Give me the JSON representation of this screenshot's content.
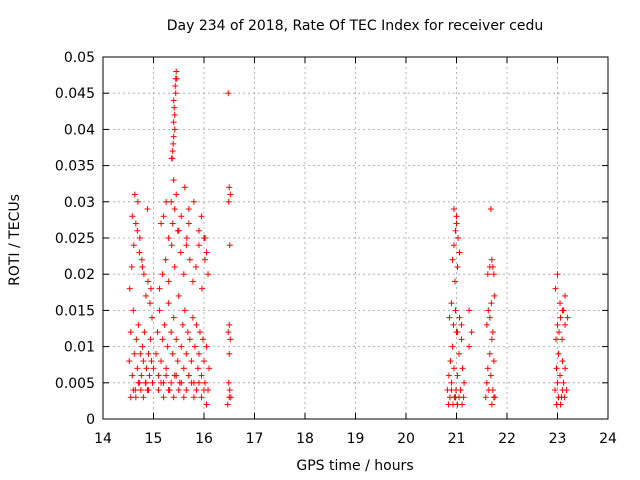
{
  "chart_data": {
    "type": "scatter",
    "title": "Day 234 of 2018, Rate Of TEC Index for receiver cedu",
    "xlabel": "GPS time / hours",
    "ylabel": "ROTI / TECUs",
    "xlim": [
      14,
      24
    ],
    "ylim": [
      0,
      0.05
    ],
    "grid": true,
    "marker": "+",
    "marker_color": "#ff0000",
    "x_ticks": [
      "14",
      "15",
      "16",
      "17",
      "18",
      "19",
      "20",
      "21",
      "22",
      "23",
      "24"
    ],
    "y_ticks": [
      "0",
      "0.005",
      "0.01",
      "0.015",
      "0.02",
      "0.025",
      "0.03",
      "0.035",
      "0.04",
      "0.045",
      "0.05"
    ],
    "series": [
      {
        "name": "ROTI",
        "x": [
          14.52,
          14.55,
          14.58,
          14.6,
          14.62,
          14.64,
          14.66,
          14.68,
          14.7,
          14.72,
          14.74,
          14.76,
          14.78,
          14.8,
          14.82,
          14.84,
          14.86,
          14.88,
          14.9,
          14.92,
          14.94,
          14.96,
          14.98,
          15.0,
          14.53,
          14.57,
          14.61,
          14.65,
          14.69,
          14.73,
          14.77,
          14.81,
          14.85,
          14.89,
          14.93,
          14.97,
          14.55,
          14.6,
          14.65,
          14.7,
          14.75,
          14.8,
          14.85,
          14.9,
          14.58,
          14.63,
          14.68,
          14.72,
          14.78,
          14.88,
          14.95,
          15.05,
          15.08,
          15.1,
          15.12,
          15.15,
          15.18,
          15.2,
          15.22,
          15.25,
          15.28,
          15.3,
          15.32,
          15.35,
          15.38,
          15.4,
          15.42,
          15.45,
          15.48,
          15.5,
          15.52,
          15.55,
          15.58,
          15.6,
          15.62,
          15.65,
          15.68,
          15.7,
          15.72,
          15.75,
          15.78,
          15.8,
          15.82,
          15.85,
          15.88,
          15.9,
          15.92,
          15.95,
          15.98,
          16.0,
          16.02,
          16.05,
          16.08,
          16.1,
          15.1,
          15.15,
          15.2,
          15.25,
          15.3,
          15.35,
          15.4,
          15.45,
          15.5,
          15.55,
          15.6,
          15.65,
          15.7,
          15.75,
          15.8,
          15.85,
          15.9,
          15.95,
          16.0,
          16.05,
          15.12,
          15.18,
          15.24,
          15.3,
          15.36,
          15.42,
          15.48,
          15.54,
          15.6,
          15.66,
          15.72,
          15.78,
          15.84,
          15.9,
          15.96,
          16.02,
          16.08,
          15.2,
          15.3,
          15.35,
          15.38,
          15.4,
          15.42,
          15.45,
          15.5,
          15.55,
          15.65,
          15.7,
          15.8,
          15.9,
          16.0,
          16.05,
          15.37,
          15.39,
          15.4,
          15.41,
          15.42,
          15.43,
          15.44,
          15.45,
          15.46,
          15.4,
          15.42,
          15.44,
          15.38,
          15.36,
          15.4,
          15.62,
          15.7,
          15.15,
          15.25,
          15.95,
          16.02,
          16.48,
          16.5,
          16.52,
          16.49,
          16.51,
          16.5,
          16.48,
          16.52,
          16.5,
          16.49,
          16.51,
          16.5,
          16.53,
          16.47,
          20.82,
          20.85,
          20.88,
          20.9,
          20.92,
          20.95,
          20.98,
          21.0,
          21.02,
          21.05,
          21.08,
          21.1,
          21.12,
          21.15,
          20.84,
          20.87,
          20.9,
          20.93,
          20.96,
          20.99,
          21.02,
          21.05,
          21.08,
          21.11,
          21.14,
          20.86,
          20.9,
          20.94,
          20.98,
          21.02,
          21.06,
          21.1,
          20.92,
          20.95,
          20.98,
          21.0,
          21.03,
          21.06,
          20.95,
          21.0,
          21.02,
          20.97,
          21.25,
          21.3,
          21.25,
          21.58,
          21.6,
          21.62,
          21.64,
          21.66,
          21.68,
          21.7,
          21.72,
          21.74,
          21.76,
          21.6,
          21.63,
          21.66,
          21.69,
          21.72,
          21.75,
          21.62,
          21.66,
          21.7,
          21.74,
          21.68,
          21.72,
          21.7,
          21.74,
          22.95,
          22.98,
          23.0,
          23.02,
          23.05,
          23.08,
          23.1,
          23.12,
          23.15,
          23.18,
          22.97,
          23.0,
          23.03,
          23.06,
          23.09,
          23.12,
          23.15,
          22.98,
          23.02,
          23.06,
          23.1,
          23.14,
          22.96,
          23.0,
          23.05,
          23.1,
          23.15,
          23.2
        ],
        "y": [
          0.008,
          0.012,
          0.006,
          0.015,
          0.009,
          0.004,
          0.011,
          0.007,
          0.013,
          0.005,
          0.009,
          0.006,
          0.01,
          0.008,
          0.012,
          0.005,
          0.007,
          0.004,
          0.009,
          0.006,
          0.011,
          0.008,
          0.005,
          0.007,
          0.018,
          0.021,
          0.024,
          0.027,
          0.03,
          0.025,
          0.022,
          0.02,
          0.017,
          0.019,
          0.016,
          0.014,
          0.003,
          0.004,
          0.003,
          0.005,
          0.004,
          0.003,
          0.005,
          0.004,
          0.028,
          0.031,
          0.026,
          0.023,
          0.021,
          0.029,
          0.018,
          0.009,
          0.012,
          0.006,
          0.015,
          0.008,
          0.011,
          0.005,
          0.013,
          0.007,
          0.01,
          0.016,
          0.004,
          0.012,
          0.009,
          0.014,
          0.006,
          0.011,
          0.008,
          0.017,
          0.005,
          0.01,
          0.013,
          0.007,
          0.015,
          0.009,
          0.012,
          0.006,
          0.011,
          0.008,
          0.014,
          0.005,
          0.01,
          0.013,
          0.007,
          0.009,
          0.012,
          0.006,
          0.011,
          0.008,
          0.005,
          0.01,
          0.004,
          0.007,
          0.004,
          0.005,
          0.003,
          0.006,
          0.004,
          0.005,
          0.003,
          0.006,
          0.004,
          0.005,
          0.003,
          0.004,
          0.006,
          0.005,
          0.003,
          0.004,
          0.005,
          0.003,
          0.004,
          0.002,
          0.018,
          0.02,
          0.022,
          0.019,
          0.024,
          0.021,
          0.026,
          0.023,
          0.02,
          0.025,
          0.022,
          0.019,
          0.021,
          0.024,
          0.018,
          0.022,
          0.02,
          0.028,
          0.025,
          0.03,
          0.027,
          0.033,
          0.029,
          0.031,
          0.026,
          0.028,
          0.024,
          0.027,
          0.03,
          0.026,
          0.025,
          0.023,
          0.036,
          0.038,
          0.041,
          0.043,
          0.042,
          0.046,
          0.047,
          0.048,
          0.047,
          0.039,
          0.04,
          0.045,
          0.037,
          0.036,
          0.044,
          0.032,
          0.029,
          0.027,
          0.03,
          0.028,
          0.025,
          0.045,
          0.032,
          0.031,
          0.03,
          0.024,
          0.013,
          0.012,
          0.011,
          0.009,
          0.005,
          0.004,
          0.003,
          0.003,
          0.002,
          0.004,
          0.006,
          0.008,
          0.005,
          0.01,
          0.007,
          0.003,
          0.012,
          0.006,
          0.009,
          0.004,
          0.011,
          0.007,
          0.005,
          0.002,
          0.003,
          0.004,
          0.002,
          0.003,
          0.004,
          0.002,
          0.003,
          0.004,
          0.002,
          0.003,
          0.014,
          0.016,
          0.013,
          0.015,
          0.012,
          0.014,
          0.013,
          0.022,
          0.024,
          0.026,
          0.028,
          0.025,
          0.023,
          0.029,
          0.027,
          0.021,
          0.019,
          0.015,
          0.012,
          0.01,
          0.003,
          0.005,
          0.007,
          0.004,
          0.009,
          0.006,
          0.011,
          0.004,
          0.008,
          0.003,
          0.013,
          0.015,
          0.014,
          0.016,
          0.012,
          0.017,
          0.02,
          0.021,
          0.022,
          0.02,
          0.029,
          0.021,
          0.002,
          0.003,
          0.004,
          0.007,
          0.005,
          0.009,
          0.006,
          0.003,
          0.008,
          0.005,
          0.007,
          0.004,
          0.011,
          0.013,
          0.012,
          0.014,
          0.011,
          0.015,
          0.013,
          0.002,
          0.003,
          0.002,
          0.004,
          0.003,
          0.018,
          0.02,
          0.016,
          0.015,
          0.017,
          0.014
        ]
      }
    ]
  }
}
